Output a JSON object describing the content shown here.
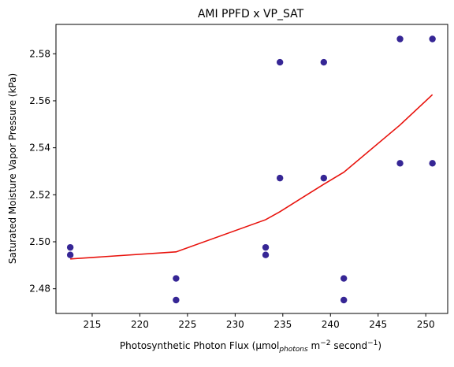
{
  "chart_data": {
    "type": "scatter",
    "title": "AMI PPFD x VP_SAT",
    "xlabel_parts": {
      "main": "Photosynthetic Photon Flux (µmol",
      "sub": "photons",
      "mid": " m",
      "sup1": "−2",
      "mid2": " second",
      "sup2": "−1",
      "end": ")"
    },
    "ylabel": "Saturated Moisture Vapor Pressure (kPa)",
    "xlim": [
      211.2,
      252.3
    ],
    "ylim": [
      2.4695,
      2.5925
    ],
    "xticks": [
      215,
      220,
      225,
      230,
      235,
      240,
      245,
      250
    ],
    "yticks": [
      2.48,
      2.5,
      2.52,
      2.54,
      2.56,
      2.58
    ],
    "ytick_labels": [
      "2.48",
      "2.50",
      "2.52",
      "2.54",
      "2.56",
      "2.58"
    ],
    "grid": false,
    "colors": {
      "points": "#2b1a8f",
      "trend": "#e8120c"
    },
    "points": [
      {
        "x": 212.7,
        "y": 2.4976
      },
      {
        "x": 212.7,
        "y": 2.4944
      },
      {
        "x": 223.8,
        "y": 2.4844
      },
      {
        "x": 223.8,
        "y": 2.4752
      },
      {
        "x": 233.2,
        "y": 2.4976
      },
      {
        "x": 233.2,
        "y": 2.4944
      },
      {
        "x": 234.7,
        "y": 2.5764
      },
      {
        "x": 234.7,
        "y": 2.5271
      },
      {
        "x": 239.3,
        "y": 2.5764
      },
      {
        "x": 239.3,
        "y": 2.5271
      },
      {
        "x": 241.4,
        "y": 2.4844
      },
      {
        "x": 241.4,
        "y": 2.4752
      },
      {
        "x": 247.3,
        "y": 2.5863
      },
      {
        "x": 247.3,
        "y": 2.5334
      },
      {
        "x": 250.7,
        "y": 2.5863
      },
      {
        "x": 250.7,
        "y": 2.5334
      }
    ],
    "trend_line": [
      {
        "x": 212.7,
        "y": 2.4927
      },
      {
        "x": 223.8,
        "y": 2.4957
      },
      {
        "x": 233.2,
        "y": 2.5094
      },
      {
        "x": 234.7,
        "y": 2.5128
      },
      {
        "x": 239.3,
        "y": 2.5245
      },
      {
        "x": 241.4,
        "y": 2.5296
      },
      {
        "x": 247.3,
        "y": 2.5497
      },
      {
        "x": 250.7,
        "y": 2.5626
      }
    ]
  }
}
